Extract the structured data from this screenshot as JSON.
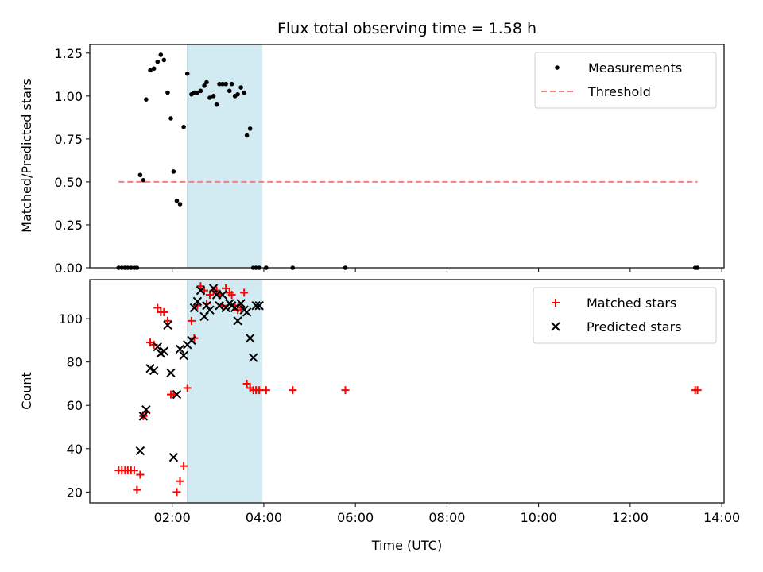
{
  "chart_data": [
    {
      "type": "scatter",
      "title": "Flux total observing time = 1.58 h",
      "ylabel": "Matched/Predicted stars",
      "xlabel": "",
      "xlim": [
        0.2,
        14.05
      ],
      "ylim": [
        0,
        1.3
      ],
      "x_ticks": [
        2,
        4,
        6,
        8,
        10,
        12,
        14
      ],
      "x_tick_labels": [
        "",
        "",
        "",
        "",
        "",
        "",
        ""
      ],
      "y_ticks": [
        0,
        0.25,
        0.5,
        0.75,
        1.0,
        1.25
      ],
      "y_tick_labels": [
        "0.00",
        "0.25",
        "0.50",
        "0.75",
        "1.00",
        "1.25"
      ],
      "shaded_region": {
        "x0": 2.33,
        "x1": 3.95,
        "color": "#add8e6"
      },
      "legend": {
        "position": "top-right",
        "entries": [
          "Measurements",
          "Threshold"
        ]
      },
      "series": [
        {
          "name": "Measurements",
          "marker": "dot",
          "color": "#000000",
          "x": [
            0.83,
            0.9,
            0.97,
            1.03,
            1.1,
            1.17,
            1.23,
            1.3,
            1.37,
            1.43,
            1.52,
            1.6,
            1.68,
            1.75,
            1.82,
            1.9,
            1.97,
            2.03,
            2.1,
            2.17,
            2.25,
            2.33,
            2.42,
            2.48,
            2.55,
            2.62,
            2.7,
            2.75,
            2.82,
            2.9,
            2.97,
            3.03,
            3.1,
            3.17,
            3.25,
            3.3,
            3.37,
            3.43,
            3.5,
            3.57,
            3.63,
            3.7,
            3.77,
            3.83,
            3.9,
            4.05,
            4.63,
            5.78,
            13.42,
            13.47
          ],
          "y": [
            0,
            0,
            0,
            0,
            0,
            0,
            0,
            0.54,
            0.51,
            0.98,
            1.15,
            1.16,
            1.2,
            1.24,
            1.21,
            1.02,
            0.87,
            0.56,
            0.39,
            0.37,
            0.82,
            1.13,
            1.01,
            1.02,
            1.02,
            1.03,
            1.06,
            1.08,
            0.99,
            1.0,
            0.95,
            1.07,
            1.07,
            1.07,
            1.03,
            1.07,
            1.0,
            1.01,
            1.05,
            1.02,
            0.77,
            0.81,
            0,
            0,
            0,
            0,
            0,
            0,
            0,
            0
          ]
        },
        {
          "name": "Threshold",
          "type": "line",
          "style": "dashed",
          "color": "#f08080",
          "x": [
            0.83,
            13.47
          ],
          "y": [
            0.5,
            0.5
          ]
        }
      ]
    },
    {
      "type": "scatter",
      "title": "",
      "ylabel": "Count",
      "xlabel": "Time (UTC)",
      "xlim": [
        0.2,
        14.05
      ],
      "ylim": [
        15,
        118
      ],
      "x_ticks": [
        2,
        4,
        6,
        8,
        10,
        12,
        14
      ],
      "x_tick_labels": [
        "02:00",
        "04:00",
        "06:00",
        "08:00",
        "10:00",
        "12:00",
        "14:00"
      ],
      "y_ticks": [
        20,
        40,
        60,
        80,
        100
      ],
      "y_tick_labels": [
        "20",
        "40",
        "60",
        "80",
        "100"
      ],
      "shaded_region": {
        "x0": 2.33,
        "x1": 3.95,
        "color": "#add8e6"
      },
      "legend": {
        "position": "top-right",
        "entries": [
          "Matched stars",
          "Predicted stars"
        ]
      },
      "series": [
        {
          "name": "Matched stars",
          "marker": "plus",
          "color": "#ff0000",
          "x": [
            0.83,
            0.9,
            0.97,
            1.03,
            1.1,
            1.17,
            1.23,
            1.3,
            1.37,
            1.43,
            1.52,
            1.6,
            1.68,
            1.75,
            1.82,
            1.9,
            1.97,
            2.03,
            2.1,
            2.17,
            2.25,
            2.33,
            2.42,
            2.48,
            2.55,
            2.62,
            2.7,
            2.75,
            2.82,
            2.9,
            2.97,
            3.03,
            3.1,
            3.17,
            3.25,
            3.3,
            3.37,
            3.43,
            3.5,
            3.57,
            3.63,
            3.7,
            3.77,
            3.83,
            3.9,
            4.05,
            4.63,
            5.78,
            13.42,
            13.47
          ],
          "y": [
            30,
            30,
            30,
            30,
            30,
            30,
            21,
            28,
            55,
            57,
            89,
            88,
            105,
            103,
            103,
            99,
            65,
            65,
            20,
            25,
            32,
            68,
            99,
            91,
            106,
            115,
            113,
            107,
            111,
            113,
            113,
            111,
            106,
            114,
            112,
            111,
            106,
            104,
            105,
            112,
            70,
            68,
            67,
            67,
            67,
            67,
            67,
            67,
            67,
            67
          ]
        },
        {
          "name": "Predicted stars",
          "marker": "x",
          "color": "#000000",
          "x": [
            1.3,
            1.37,
            1.43,
            1.52,
            1.6,
            1.68,
            1.75,
            1.82,
            1.9,
            1.97,
            2.03,
            2.1,
            2.17,
            2.25,
            2.33,
            2.42,
            2.48,
            2.55,
            2.62,
            2.7,
            2.75,
            2.82,
            2.9,
            2.97,
            3.03,
            3.1,
            3.17,
            3.25,
            3.3,
            3.37,
            3.43,
            3.5,
            3.57,
            3.63,
            3.7,
            3.77,
            3.83,
            3.9
          ],
          "y": [
            39,
            55,
            58,
            77,
            76,
            87,
            84,
            85,
            97,
            75,
            36,
            65,
            86,
            83,
            88,
            90,
            105,
            108,
            113,
            101,
            106,
            104,
            114,
            111,
            106,
            111,
            105,
            107,
            106,
            105,
            99,
            107,
            104,
            103,
            91,
            82,
            106,
            106
          ]
        }
      ]
    }
  ]
}
